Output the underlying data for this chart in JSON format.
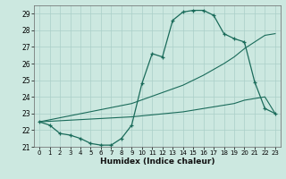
{
  "xlabel": "Humidex (Indice chaleur)",
  "bg_color": "#cce8e0",
  "line_color": "#1a6b5a",
  "grid_color": "#aacfc8",
  "ylim": [
    21.0,
    29.5
  ],
  "xlim": [
    -0.5,
    23.5
  ],
  "yticks": [
    21,
    22,
    23,
    24,
    25,
    26,
    27,
    28,
    29
  ],
  "xticks": [
    0,
    1,
    2,
    3,
    4,
    5,
    6,
    7,
    8,
    9,
    10,
    11,
    12,
    13,
    14,
    15,
    16,
    17,
    18,
    19,
    20,
    21,
    22,
    23
  ],
  "curve1_x": [
    0,
    1,
    2,
    3,
    4,
    5,
    6,
    7,
    8,
    9,
    10,
    11,
    12,
    13,
    14,
    15,
    16,
    17,
    18,
    19,
    20,
    21,
    22,
    23
  ],
  "curve1_y": [
    22.5,
    22.3,
    21.8,
    21.7,
    21.5,
    21.2,
    21.1,
    21.1,
    21.5,
    22.3,
    24.8,
    26.6,
    26.4,
    28.6,
    29.1,
    29.2,
    29.2,
    28.9,
    27.8,
    27.5,
    27.3,
    24.9,
    23.3,
    23.0
  ],
  "curve2_x": [
    0,
    9,
    14,
    16,
    18,
    19,
    20,
    21,
    22,
    23
  ],
  "curve2_y": [
    22.5,
    23.6,
    24.7,
    25.3,
    26.0,
    26.4,
    26.9,
    27.3,
    27.7,
    27.8
  ],
  "curve3_x": [
    0,
    9,
    14,
    16,
    18,
    19,
    20,
    21,
    22,
    23
  ],
  "curve3_y": [
    22.5,
    22.8,
    23.1,
    23.3,
    23.5,
    23.6,
    23.8,
    23.9,
    24.0,
    23.0
  ]
}
